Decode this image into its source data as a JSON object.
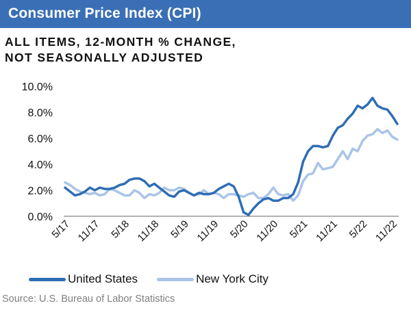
{
  "header": {
    "title": "Consumer Price Index (CPI)"
  },
  "subtitle": {
    "line1": "ALL ITEMS, 12-MONTH % CHANGE,",
    "line2": "NOT SEASONALLY ADJUSTED"
  },
  "source": "Source: U.S. Bureau of Labor Statistics",
  "chart_data": {
    "type": "line",
    "title": "",
    "xlabel": "",
    "ylabel": "",
    "ylim": [
      0,
      10
    ],
    "yticks": [
      0,
      2,
      4,
      6,
      8,
      10
    ],
    "ytick_labels": [
      "0.0%",
      "2.0%",
      "4.0%",
      "6.0%",
      "8.0%",
      "10.0%"
    ],
    "xtick_labels": [
      "5/17",
      "11/17",
      "5/18",
      "11/18",
      "5/19",
      "11/19",
      "5/20",
      "11/20",
      "5/21",
      "11/21",
      "5/22",
      "11/22"
    ],
    "legend_position": "bottom",
    "x": [
      "4/17",
      "5/17",
      "6/17",
      "7/17",
      "8/17",
      "9/17",
      "10/17",
      "11/17",
      "12/17",
      "1/18",
      "2/18",
      "3/18",
      "4/18",
      "5/18",
      "6/18",
      "7/18",
      "8/18",
      "9/18",
      "10/18",
      "11/18",
      "12/18",
      "1/19",
      "2/19",
      "3/19",
      "4/19",
      "5/19",
      "6/19",
      "7/19",
      "8/19",
      "9/19",
      "10/19",
      "11/19",
      "12/19",
      "1/20",
      "2/20",
      "3/20",
      "4/20",
      "5/20",
      "6/20",
      "7/20",
      "8/20",
      "9/20",
      "10/20",
      "11/20",
      "12/20",
      "1/21",
      "2/21",
      "3/21",
      "4/21",
      "5/21",
      "6/21",
      "7/21",
      "8/21",
      "9/21",
      "10/21",
      "11/21",
      "12/21",
      "1/22",
      "2/22",
      "3/22",
      "4/22",
      "5/22",
      "6/22",
      "7/22",
      "8/22",
      "9/22",
      "10/22",
      "11/22"
    ],
    "series": [
      {
        "name": "United States",
        "color": "#2e6db4",
        "values": [
          2.2,
          1.9,
          1.6,
          1.7,
          1.9,
          2.2,
          2.0,
          2.2,
          2.1,
          2.1,
          2.2,
          2.4,
          2.5,
          2.8,
          2.9,
          2.9,
          2.7,
          2.3,
          2.5,
          2.2,
          1.9,
          1.6,
          1.5,
          1.9,
          2.0,
          1.8,
          1.6,
          1.8,
          1.7,
          1.7,
          1.8,
          2.1,
          2.3,
          2.5,
          2.3,
          1.5,
          0.3,
          0.1,
          0.6,
          1.0,
          1.3,
          1.4,
          1.2,
          1.2,
          1.4,
          1.4,
          1.7,
          2.6,
          4.2,
          5.0,
          5.4,
          5.4,
          5.3,
          5.4,
          6.2,
          6.8,
          7.0,
          7.5,
          7.9,
          8.5,
          8.3,
          8.6,
          9.1,
          8.5,
          8.3,
          8.2,
          7.7,
          7.1
        ]
      },
      {
        "name": "New York City",
        "color": "#a9c4e8",
        "values": [
          2.6,
          2.4,
          2.1,
          1.9,
          1.8,
          1.7,
          1.8,
          1.6,
          1.7,
          2.1,
          2.0,
          1.8,
          1.6,
          1.6,
          2.0,
          1.8,
          1.4,
          1.7,
          1.6,
          1.8,
          2.2,
          2.0,
          2.0,
          2.2,
          2.1,
          1.8,
          1.6,
          1.7,
          2.0,
          1.7,
          1.8,
          1.7,
          1.4,
          1.7,
          1.7,
          1.6,
          1.5,
          1.7,
          1.8,
          1.4,
          1.4,
          1.7,
          2.2,
          1.7,
          1.6,
          1.7,
          1.2,
          1.6,
          2.7,
          3.2,
          3.3,
          4.1,
          3.6,
          3.7,
          3.8,
          4.4,
          5.0,
          4.4,
          5.2,
          5.0,
          5.8,
          6.2,
          6.3,
          6.7,
          6.4,
          6.6,
          6.1,
          5.9
        ]
      }
    ]
  }
}
